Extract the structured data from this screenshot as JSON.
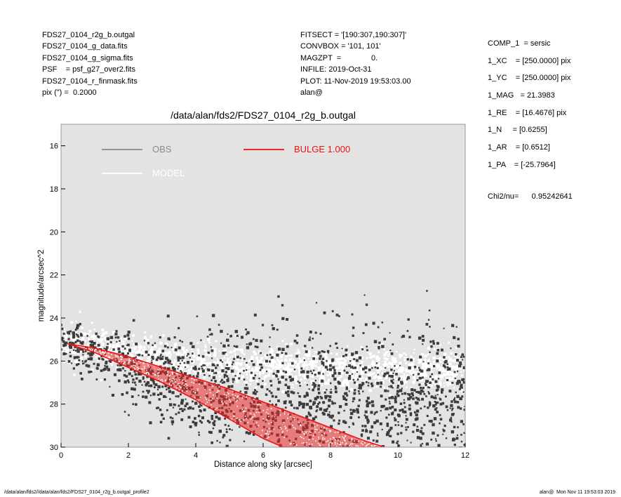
{
  "header": {
    "left": [
      "FDS27_0104_r2g_b.outgal",
      "FDS27_0104_g_data.fits",
      "FDS27_0104_g_sigma.fits",
      "PSF    = psf_g27_over2.fits",
      "FDS27_0104_r_finmask.fits",
      "pix (\") =  0.2000"
    ],
    "middle": [
      "FITSECT = '[190:307,190:307]'",
      "CONVBOX = '101, 101'",
      "MAGZPT  =              0.",
      "INFILE: 2019-Oct-31",
      "PLOT: 11-Nov-2019 19:53:03.00",
      "alan@"
    ],
    "right": [
      "COMP_1  = sersic",
      "1_XC    = [250.0000] pix",
      "1_YC    = [250.0000] pix",
      "1_MAG   = 21.3983",
      "1_RE    = [16.4676] pix",
      "1_N     = [0.6255]",
      "1_AR    = [0.6512]",
      "1_PA    = [-25.7964]"
    ],
    "chi2": "Chi2/nu=      0.95242641"
  },
  "footer": {
    "left": "/data/alan/fds2//data/alan/fds2/FDS27_0104_r2g_b.outgal_profile2",
    "right": "alan@  Mon Nov 11 19:53:03 2019"
  },
  "chart_data": {
    "type": "scatter",
    "title": "/data/alan/fds2/FDS27_0104_r2g_b.outgal",
    "xlabel": "Distance along sky [arcsec]",
    "ylabel": "magnitude/arcsec^2",
    "xlim": [
      0,
      12
    ],
    "ylim": [
      30,
      15
    ],
    "y_inverted": true,
    "x_ticks": [
      0,
      2,
      4,
      6,
      8,
      10,
      12
    ],
    "y_ticks": [
      16,
      18,
      20,
      22,
      24,
      26,
      28,
      30
    ],
    "grid": false,
    "background_color": "#e3e3e3",
    "legend": [
      {
        "label": "OBS",
        "color": "#8a8a8a",
        "position": "top-left"
      },
      {
        "label": "MODEL",
        "color": "#ffffff",
        "position": "top-left"
      },
      {
        "label": "BULGE  1.000",
        "color": "#ee1111",
        "position": "top-center"
      }
    ],
    "series": [
      {
        "name": "OBS",
        "color": "#3c3c3c",
        "marker": "square",
        "description_points": {
          "x": [
            0.0,
            1,
            2,
            3,
            4,
            5,
            6,
            7,
            8,
            9,
            10,
            11,
            12
          ],
          "y": [
            25.2,
            25.5,
            26.2,
            26.8,
            27.2,
            27.5,
            27.6,
            27.7,
            27.8,
            27.8,
            27.9,
            27.9,
            28.0
          ]
        }
      },
      {
        "name": "MODEL",
        "color": "#ffffff",
        "marker": "square",
        "description_points": {
          "x": [
            0.0,
            1,
            2,
            3,
            4,
            5,
            6,
            7,
            8,
            9,
            10,
            11,
            12
          ],
          "y": [
            25.1,
            25.3,
            25.6,
            25.9,
            26.1,
            26.2,
            26.3,
            26.3,
            26.4,
            26.4,
            26.4,
            26.4,
            26.4
          ]
        }
      },
      {
        "name": "BULGE  1.000",
        "color": "#ee1111",
        "band_upper": {
          "x": [
            0.2,
            1,
            2,
            3,
            4,
            5,
            6,
            7,
            8,
            9,
            9.6
          ],
          "y": [
            25.2,
            25.4,
            25.8,
            26.3,
            26.8,
            27.3,
            27.9,
            28.5,
            29.1,
            29.7,
            30.0
          ]
        },
        "band_lower": {
          "x": [
            0.2,
            1,
            2,
            3,
            4,
            5,
            6,
            6.6
          ],
          "y": [
            25.2,
            25.6,
            26.3,
            27.0,
            27.8,
            28.7,
            29.6,
            30.0
          ]
        }
      }
    ]
  }
}
